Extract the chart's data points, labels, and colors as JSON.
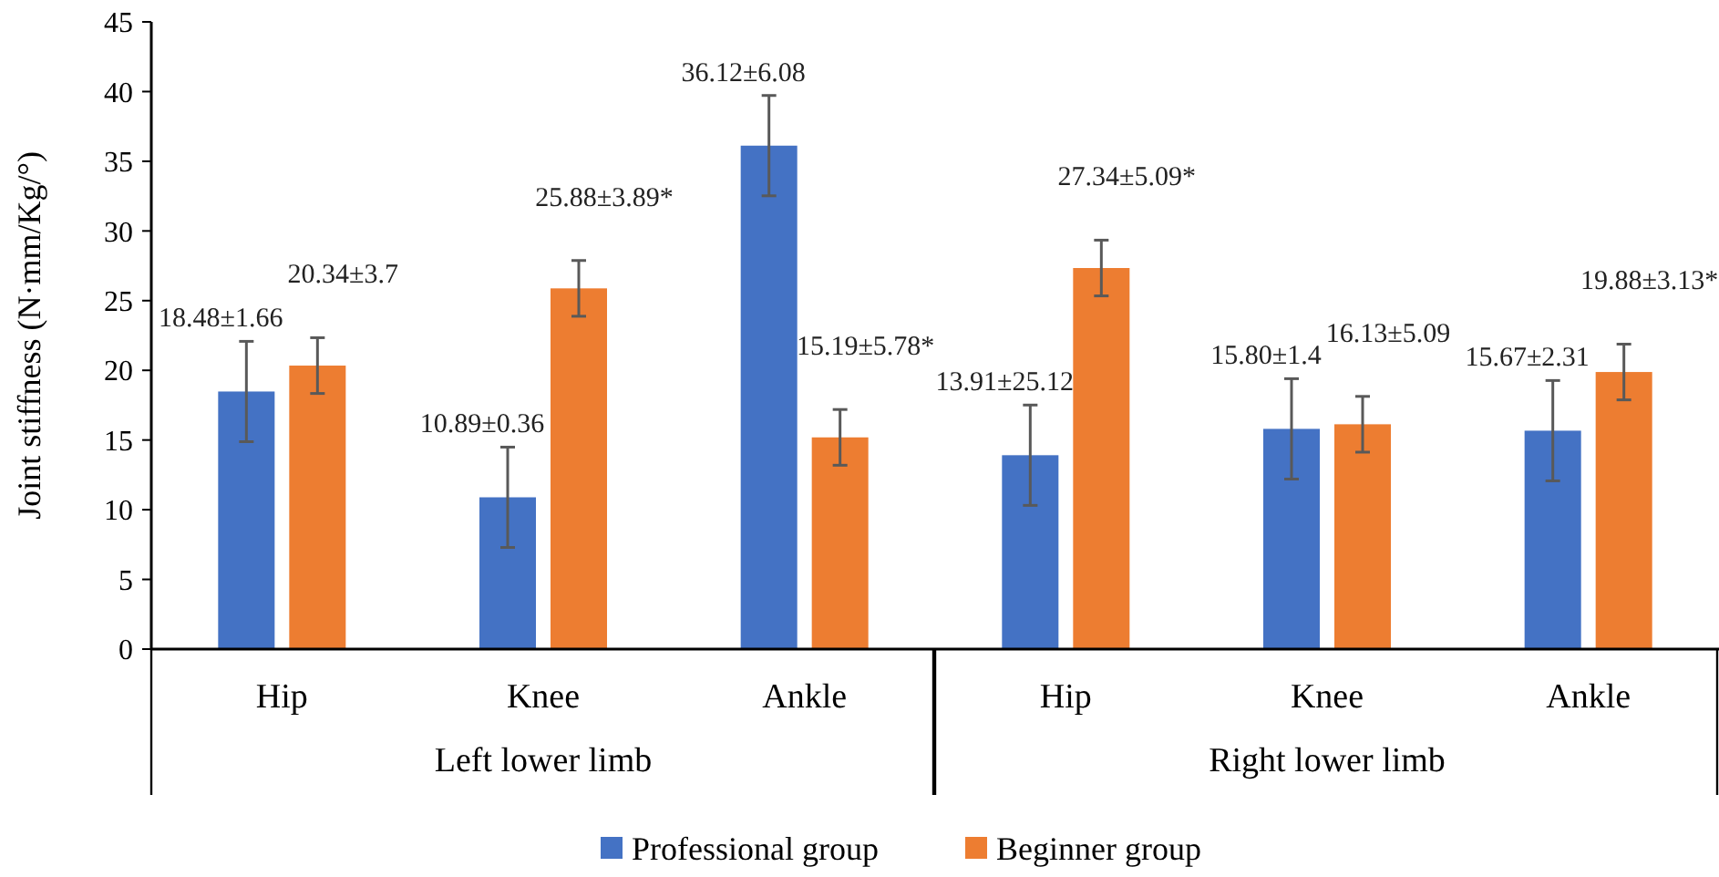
{
  "chart_data": {
    "type": "bar",
    "ylabel": "Joint stiffness (N·mm/Kg/°)",
    "categories": [
      "Hip",
      "Knee",
      "Ankle",
      "Hip",
      "Knee",
      "Ankle"
    ],
    "series": [
      {
        "name": "Professional group",
        "color": "#4472c4",
        "values": [
          18.48,
          10.89,
          36.12,
          13.91,
          15.8,
          15.67
        ],
        "errors": [
          3.6,
          3.6,
          3.6,
          3.6,
          3.6,
          3.6
        ],
        "value_labels": [
          "18.48±1.66",
          "10.89±0.36",
          "36.12±6.08",
          "13.91±25.12",
          "15.80±1.4",
          "15.67±2.31"
        ]
      },
      {
        "name": "Beginner group",
        "color": "#ed7d31",
        "values": [
          20.34,
          25.88,
          15.19,
          27.34,
          16.13,
          19.88
        ],
        "errors": [
          2,
          2,
          2,
          2,
          2,
          2
        ],
        "value_labels": [
          "20.34±3.7",
          "25.88±3.89*",
          "15.19±5.78*",
          "27.34±5.09*",
          "16.13±5.09",
          "19.88±3.13*"
        ]
      }
    ],
    "ylim": [
      0,
      45
    ],
    "yticks": [
      0,
      5,
      10,
      15,
      20,
      25,
      30,
      35,
      40,
      45
    ],
    "grid": false,
    "legend": "bottom",
    "annotations": [
      "Left lower limb",
      "Right lower limb"
    ]
  }
}
